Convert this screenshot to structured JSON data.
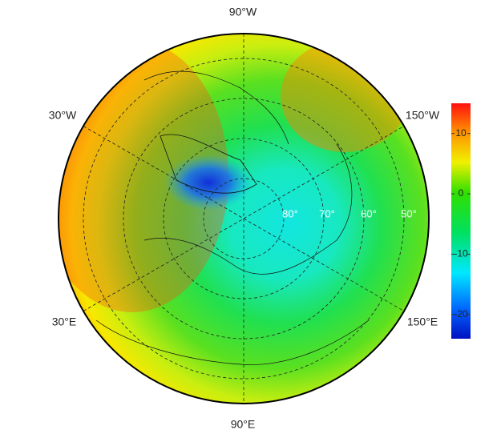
{
  "map": {
    "longitude_labels": [
      "90°W",
      "150°W",
      "150°E",
      "90°E",
      "30°E",
      "30°W"
    ],
    "latitude_labels": [
      "80°",
      "70°",
      "60°",
      "50°"
    ]
  },
  "colorbar": {
    "lim": [
      -24,
      15
    ],
    "ticks": [
      10,
      0,
      -10,
      -20
    ]
  }
}
